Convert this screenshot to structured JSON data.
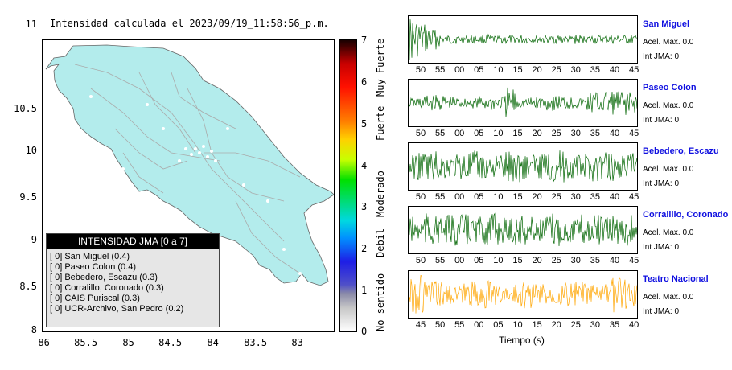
{
  "title": "Intensidad calculada el 2023/09/19_11:58:56_p.m.",
  "map": {
    "y_ticks": [
      "11",
      "10.5",
      "10",
      "9.5",
      "9",
      "8.5",
      "8"
    ],
    "x_ticks": [
      "-86",
      "-85.5",
      "-85",
      "-84.5",
      "-84",
      "-83.5",
      "-83"
    ],
    "land_color": "#b3ecec"
  },
  "legend": {
    "title": "INTENSIDAD JMA [0 a 7]",
    "items": [
      "[ 0] San Miguel (0.4)",
      "[ 0] Paseo Colon (0.4)",
      "[ 0] Bebedero, Escazu (0.3)",
      "[ 0] Corralillo, Coronado (0.3)",
      "[ 0] CAIS Puriscal (0.3)",
      "[ 0] UCR-Archivo, San Pedro (0.2)"
    ]
  },
  "colorbar": {
    "ticks": [
      "7",
      "6",
      "5",
      "4",
      "3",
      "2",
      "1",
      "0"
    ],
    "labels": [
      "Muy Fuerte",
      "Fuerte",
      "Moderado",
      "Debil",
      "No sentido"
    ]
  },
  "stations": [
    {
      "name": "San Miguel",
      "acel": "Acel. Max. 0.0",
      "jma": "Int JMA: 0",
      "color": "#006400",
      "ticks": [
        "50",
        "55",
        "00",
        "05",
        "10",
        "15",
        "20",
        "25",
        "30",
        "35",
        "40",
        "45"
      ]
    },
    {
      "name": "Paseo Colon",
      "acel": "Acel. Max. 0.0",
      "jma": "Int JMA: 0",
      "color": "#006400",
      "ticks": [
        "50",
        "55",
        "00",
        "05",
        "10",
        "15",
        "20",
        "25",
        "30",
        "35",
        "40",
        "45"
      ]
    },
    {
      "name": "Bebedero, Escazu",
      "acel": "Acel. Max. 0.0",
      "jma": "Int JMA: 0",
      "color": "#006400",
      "ticks": [
        "50",
        "55",
        "00",
        "05",
        "10",
        "15",
        "20",
        "25",
        "30",
        "35",
        "40",
        "45"
      ]
    },
    {
      "name": "Corralillo, Coronado",
      "acel": "Acel. Max. 0.0",
      "jma": "Int JMA: 0",
      "color": "#006400",
      "ticks": [
        "50",
        "55",
        "00",
        "05",
        "10",
        "15",
        "20",
        "25",
        "30",
        "35",
        "40",
        "45"
      ]
    },
    {
      "name": "Teatro Nacional",
      "acel": "Acel. Max. 0.0",
      "jma": "Int JMA: 0",
      "color": "#ffa500",
      "ticks": [
        "45",
        "50",
        "55",
        "00",
        "05",
        "10",
        "15",
        "20",
        "25",
        "30",
        "35",
        "40"
      ]
    }
  ],
  "time_label": "Tiempo (s)"
}
